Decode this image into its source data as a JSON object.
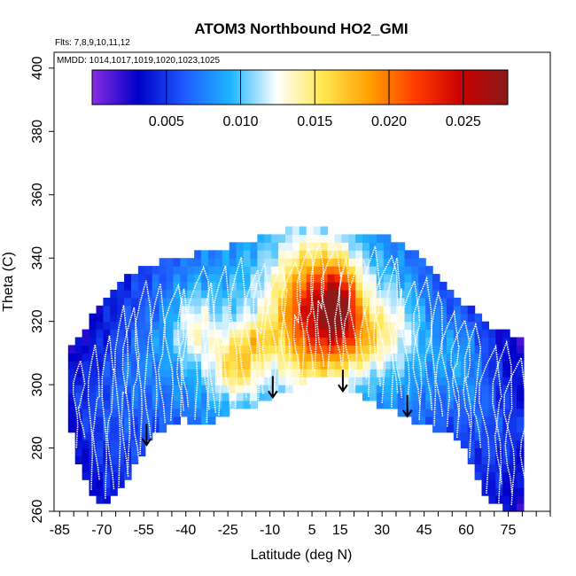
{
  "chart_data": {
    "type": "heatmap",
    "title": "ATOM3 Northbound HO2_GMI",
    "subtitle_flights": "Flts: 7,8,9,10,11,12",
    "subtitle_dates": "MMDD: 1014,1017,1019,1020,1023,1025",
    "xlabel": "Latitude (deg N)",
    "ylabel": "Theta (C)",
    "xlim": [
      -87,
      90
    ],
    "ylim": [
      260,
      405
    ],
    "x_ticks": [
      -85,
      -70,
      -55,
      -40,
      -25,
      -10,
      5,
      15,
      30,
      45,
      60,
      75
    ],
    "x_minor_step": 5,
    "y_ticks": [
      260,
      280,
      300,
      320,
      340,
      360,
      380,
      400
    ],
    "colorbar": {
      "range": [
        0.0,
        0.028
      ],
      "ticks": [
        "0.005",
        "0.010",
        "0.015",
        "0.020",
        "0.025"
      ],
      "tick_values": [
        0.005,
        0.01,
        0.015,
        0.02,
        0.025
      ],
      "colors": [
        "#8a2be2",
        "#0000c8",
        "#1e5aff",
        "#1eb4ff",
        "#ffffff",
        "#ffe650",
        "#ffa000",
        "#ff3c00",
        "#c80000",
        "#8b1a1a"
      ]
    },
    "arrow_latitudes": [
      -54,
      -9,
      16,
      39
    ],
    "arrow_thetas": [
      281,
      296,
      298,
      290
    ],
    "flight_track_color": "#ffffff",
    "envelope": {
      "lat": [
        -82,
        -77,
        -72,
        -67,
        -62,
        -57,
        -52,
        -47,
        -42,
        -37,
        -32,
        -27,
        -22,
        -17,
        -12,
        -7,
        -2,
        3,
        8,
        13,
        18,
        23,
        28,
        33,
        38,
        43,
        48,
        53,
        58,
        63,
        68,
        73,
        78
      ],
      "theta_bottom": [
        290,
        270,
        262,
        262,
        268,
        275,
        282,
        286,
        288,
        287,
        286,
        289,
        291,
        292,
        294,
        296,
        298,
        300,
        301,
        301,
        298,
        295,
        293,
        291,
        289,
        287,
        285,
        285,
        280,
        272,
        262,
        260,
        260
      ],
      "theta_top": [
        311,
        316,
        322,
        327,
        333,
        335,
        337,
        339,
        340,
        340,
        341,
        342,
        343,
        344,
        346,
        347,
        349,
        349,
        348,
        347,
        346,
        346,
        346,
        345,
        343,
        340,
        335,
        330,
        326,
        322,
        318,
        316,
        314
      ]
    },
    "hotspots": [
      {
        "lat": 8,
        "theta": 322,
        "sigma_lat": 10,
        "sigma_theta": 14,
        "amp": 0.014
      },
      {
        "lat": 15,
        "theta": 325,
        "sigma_lat": 4,
        "sigma_theta": 8,
        "amp": 0.008
      },
      {
        "lat": 24,
        "theta": 314,
        "sigma_lat": 5,
        "sigma_theta": 6,
        "amp": 0.004
      },
      {
        "lat": -22,
        "theta": 306,
        "sigma_lat": 6,
        "sigma_theta": 7,
        "amp": 0.007
      },
      {
        "lat": -37,
        "theta": 319,
        "sigma_lat": 5,
        "sigma_theta": 8,
        "amp": 0.004
      },
      {
        "lat": -14,
        "theta": 314,
        "sigma_lat": 4,
        "sigma_theta": 4,
        "amp": 0.004
      },
      {
        "lat": 35,
        "theta": 318,
        "sigma_lat": 6,
        "sigma_theta": 10,
        "amp": 0.003
      },
      {
        "lat": 60,
        "theta": 312,
        "sigma_lat": 6,
        "sigma_theta": 10,
        "amp": 0.002
      }
    ]
  }
}
